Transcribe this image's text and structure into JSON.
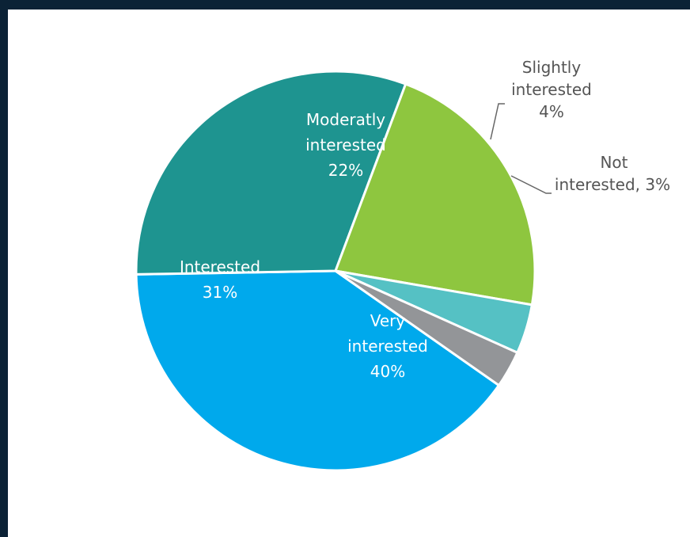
{
  "chart_data": {
    "type": "pie",
    "start_angle_deg": 125,
    "direction": "clockwise",
    "slices": [
      {
        "name": "Very interested",
        "value": 40,
        "label_lines": [
          "Very",
          "interested",
          "40%"
        ],
        "color": "#00a9ec",
        "label_color": "#ffffff"
      },
      {
        "name": "Interested",
        "value": 31,
        "label_lines": [
          "Interested",
          "31%"
        ],
        "color": "#1e9490",
        "label_color": "#ffffff"
      },
      {
        "name": "Moderatly interested",
        "value": 22,
        "label_lines": [
          "Moderatly",
          "interested",
          "22%"
        ],
        "color": "#8ec63f",
        "label_color": "#ffffff"
      },
      {
        "name": "Slightly interested",
        "value": 4,
        "label_lines": [
          "Slightly",
          "interested",
          "4%"
        ],
        "color": "#55c1c4",
        "label_color": "#555555"
      },
      {
        "name": "Not interested",
        "value": 3,
        "label_lines": [
          "Not",
          "interested, 3%"
        ],
        "color": "#939598",
        "label_color": "#555555"
      }
    ]
  },
  "colors": {
    "frame": "#0b2236",
    "background": "#ffffff",
    "leader_line": "#666666"
  }
}
